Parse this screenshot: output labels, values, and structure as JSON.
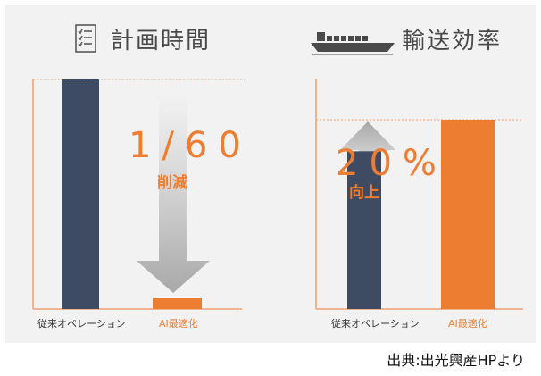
{
  "colors": {
    "dark_bar": "#3f4b62",
    "orange": "#ed7d31",
    "arrow_gray": "#b8b8b8",
    "axis": "#f0a070",
    "panel_bg": "#f2f2f2",
    "text": "#4a4a4a"
  },
  "icons": {
    "left": "checklist-icon",
    "right": "ship-icon"
  },
  "chart_data": [
    {
      "type": "bar",
      "title": "計画時間",
      "categories": [
        "従来オペレーション",
        "AI最適化"
      ],
      "values": [
        60,
        1
      ],
      "annotation": {
        "main": "1/60",
        "sub": "削減"
      }
    },
    {
      "type": "bar",
      "title": "輸送効率",
      "categories": [
        "従来オペレーション",
        "AI最適化"
      ],
      "values": [
        100,
        120
      ],
      "annotation": {
        "main": "20%",
        "sub": "向上"
      }
    }
  ],
  "source": "出典:出光興産HPより"
}
